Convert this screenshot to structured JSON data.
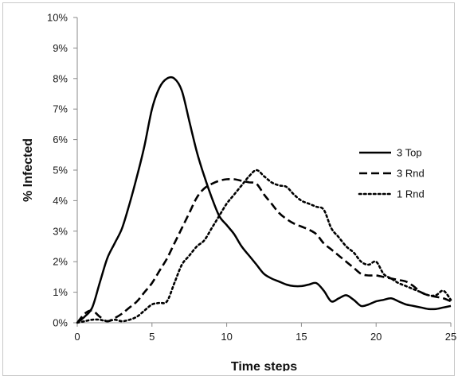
{
  "chart_data": {
    "type": "line",
    "title": "",
    "xlabel": "Time steps",
    "ylabel": "% Infected",
    "xlim": [
      0,
      25
    ],
    "ylim": [
      0,
      10
    ],
    "xticks": [
      0,
      5,
      10,
      15,
      20,
      25
    ],
    "yticks": [
      0,
      1,
      2,
      3,
      4,
      5,
      6,
      7,
      8,
      9,
      10
    ],
    "ytick_labels": [
      "0%",
      "1%",
      "2%",
      "3%",
      "4%",
      "5%",
      "6%",
      "7%",
      "8%",
      "9%",
      "10%"
    ],
    "xtick_labels": [
      "0",
      "5",
      "10",
      "15",
      "20",
      "25"
    ],
    "grid": false,
    "legend_position": "right",
    "series": [
      {
        "name": "3 Top",
        "style": "solid",
        "color": "#000000",
        "x": [
          0,
          0.5,
          1,
          1.5,
          2,
          2.5,
          3,
          3.5,
          4,
          4.5,
          5,
          5.5,
          6,
          6.5,
          7,
          7.5,
          8,
          8.5,
          9,
          9.5,
          10,
          10.5,
          11,
          11.5,
          12,
          12.5,
          13,
          13.5,
          14,
          14.5,
          15,
          15.5,
          16,
          16.5,
          17,
          17.5,
          18,
          18.5,
          19,
          19.5,
          20,
          20.5,
          21,
          21.5,
          22,
          22.5,
          23,
          23.5,
          24,
          24.5,
          25
        ],
        "y": [
          0,
          0.2,
          0.5,
          1.3,
          2.1,
          2.6,
          3.1,
          3.9,
          4.8,
          5.8,
          7.0,
          7.7,
          8.0,
          8.0,
          7.6,
          6.6,
          5.6,
          4.8,
          4.1,
          3.5,
          3.2,
          2.9,
          2.5,
          2.2,
          1.9,
          1.6,
          1.45,
          1.35,
          1.25,
          1.2,
          1.2,
          1.25,
          1.3,
          1.05,
          0.7,
          0.8,
          0.9,
          0.75,
          0.55,
          0.6,
          0.7,
          0.75,
          0.8,
          0.7,
          0.6,
          0.55,
          0.5,
          0.45,
          0.45,
          0.5,
          0.55
        ]
      },
      {
        "name": "3 Rnd",
        "style": "dashed",
        "color": "#000000",
        "x": [
          0,
          0.5,
          1,
          1.5,
          2,
          2.5,
          3,
          3.5,
          4,
          4.5,
          5,
          5.5,
          6,
          6.5,
          7,
          7.5,
          8,
          8.5,
          9,
          9.5,
          10,
          10.5,
          11,
          11.5,
          12,
          12.5,
          13,
          13.5,
          14,
          14.5,
          15,
          15.5,
          16,
          16.5,
          17,
          17.5,
          18,
          18.5,
          19,
          19.5,
          20,
          20.5,
          21,
          21.5,
          22,
          22.5,
          23,
          23.5,
          24,
          24.5,
          25
        ],
        "y": [
          0,
          0.3,
          0.4,
          0.2,
          0.05,
          0.15,
          0.3,
          0.5,
          0.7,
          1.0,
          1.3,
          1.7,
          2.1,
          2.6,
          3.1,
          3.6,
          4.1,
          4.4,
          4.55,
          4.65,
          4.7,
          4.7,
          4.65,
          4.6,
          4.55,
          4.2,
          3.9,
          3.6,
          3.4,
          3.25,
          3.15,
          3.05,
          2.9,
          2.6,
          2.4,
          2.2,
          2.0,
          1.8,
          1.6,
          1.55,
          1.55,
          1.5,
          1.45,
          1.4,
          1.35,
          1.2,
          1.0,
          0.9,
          0.85,
          0.8,
          0.7
        ]
      },
      {
        "name": "1 Rnd",
        "style": "dotted",
        "color": "#000000",
        "x": [
          0,
          0.5,
          1,
          1.5,
          2,
          2.5,
          3,
          3.5,
          4,
          4.5,
          5,
          5.5,
          6,
          6.5,
          7,
          7.5,
          8,
          8.5,
          9,
          9.5,
          10,
          10.5,
          11,
          11.5,
          12,
          12.5,
          13,
          13.5,
          14,
          14.5,
          15,
          15.5,
          16,
          16.5,
          17,
          17.5,
          18,
          18.5,
          19,
          19.5,
          20,
          20.5,
          21,
          21.5,
          22,
          22.5,
          23,
          23.5,
          24,
          24.5,
          25
        ],
        "y": [
          0,
          0.05,
          0.1,
          0.1,
          0.05,
          0.1,
          0.05,
          0.1,
          0.2,
          0.4,
          0.6,
          0.65,
          0.7,
          1.3,
          1.9,
          2.2,
          2.5,
          2.7,
          3.1,
          3.5,
          3.9,
          4.2,
          4.5,
          4.8,
          5.0,
          4.8,
          4.6,
          4.5,
          4.45,
          4.2,
          4.0,
          3.9,
          3.8,
          3.7,
          3.1,
          2.8,
          2.5,
          2.3,
          2.0,
          1.9,
          2.0,
          1.6,
          1.45,
          1.3,
          1.2,
          1.1,
          1.0,
          0.9,
          0.9,
          1.05,
          0.75
        ]
      }
    ]
  }
}
